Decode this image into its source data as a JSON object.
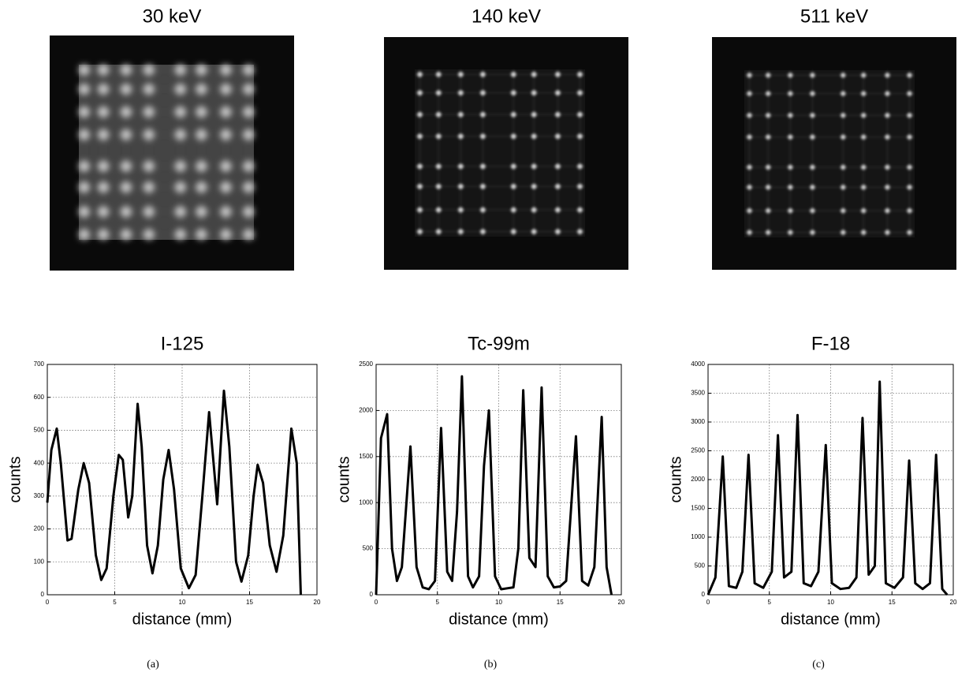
{
  "images": [
    {
      "title": "30 keV"
    },
    {
      "title": "140 keV"
    },
    {
      "title": "511 keV"
    }
  ],
  "panels": [
    "(a)",
    "(b)",
    "(c)"
  ],
  "chart_data": [
    {
      "type": "line",
      "title": "I-125",
      "x_label": "distance (mm)",
      "y_label": "counts",
      "color": "#000000",
      "grid": true,
      "xlim": [
        0,
        20
      ],
      "xticks": [
        0,
        5,
        10,
        15,
        20
      ],
      "ylim": [
        0,
        700
      ],
      "yticks": [
        0,
        100,
        200,
        300,
        400,
        500,
        600,
        700
      ],
      "x": [
        0,
        0.3,
        0.7,
        1.0,
        1.5,
        1.8,
        2.3,
        2.7,
        3.1,
        3.6,
        4.0,
        4.4,
        4.9,
        5.3,
        5.6,
        6.0,
        6.3,
        6.7,
        7.0,
        7.4,
        7.8,
        8.2,
        8.6,
        9.0,
        9.4,
        9.9,
        10.5,
        11.0,
        11.5,
        12.0,
        12.6,
        13.1,
        13.5,
        14.0,
        14.4,
        14.9,
        15.3,
        15.6,
        16.0,
        16.5,
        17.0,
        17.5,
        18.1,
        18.5,
        18.8
      ],
      "values": [
        280,
        440,
        505,
        400,
        165,
        170,
        320,
        400,
        340,
        120,
        45,
        80,
        300,
        425,
        410,
        235,
        300,
        580,
        450,
        150,
        65,
        150,
        350,
        440,
        320,
        80,
        20,
        60,
        300,
        555,
        275,
        620,
        450,
        100,
        40,
        120,
        300,
        395,
        340,
        150,
        70,
        180,
        505,
        400,
        0
      ]
    },
    {
      "type": "line",
      "title": "Tc-99m",
      "x_label": "distance (mm)",
      "y_label": "counts",
      "color": "#000000",
      "grid": true,
      "xlim": [
        0,
        20
      ],
      "xticks": [
        0,
        5,
        10,
        15,
        20
      ],
      "ylim": [
        0,
        2500
      ],
      "yticks": [
        0,
        500,
        1000,
        1500,
        2000,
        2500
      ],
      "x": [
        0,
        0.4,
        0.9,
        1.3,
        1.7,
        2.1,
        2.8,
        3.3,
        3.8,
        4.3,
        4.8,
        5.3,
        5.8,
        6.2,
        6.6,
        7.0,
        7.5,
        7.9,
        8.4,
        8.8,
        9.2,
        9.7,
        10.2,
        10.7,
        11.2,
        11.6,
        12.0,
        12.5,
        13.0,
        13.5,
        14.0,
        14.5,
        15.0,
        15.5,
        16.3,
        16.8,
        17.3,
        17.8,
        18.4,
        18.8,
        19.2
      ],
      "values": [
        0,
        1700,
        1960,
        500,
        150,
        300,
        1610,
        300,
        80,
        60,
        150,
        1810,
        250,
        150,
        900,
        2370,
        200,
        80,
        200,
        1400,
        2000,
        200,
        60,
        70,
        80,
        500,
        2220,
        400,
        300,
        2250,
        200,
        80,
        90,
        150,
        1720,
        150,
        100,
        300,
        1930,
        300,
        0
      ]
    },
    {
      "type": "line",
      "title": "F-18",
      "x_label": "distance (mm)",
      "y_label": "counts",
      "color": "#000000",
      "grid": true,
      "xlim": [
        0,
        20
      ],
      "xticks": [
        0,
        5,
        10,
        15,
        20
      ],
      "ylim": [
        0,
        4000
      ],
      "yticks": [
        0,
        500,
        1000,
        1500,
        2000,
        2500,
        3000,
        3500,
        4000
      ],
      "x": [
        0,
        0.6,
        1.2,
        1.7,
        2.3,
        2.8,
        3.3,
        3.8,
        4.5,
        5.2,
        5.7,
        6.2,
        6.8,
        7.3,
        7.8,
        8.4,
        9.0,
        9.6,
        10.1,
        10.8,
        11.5,
        12.1,
        12.6,
        13.1,
        13.6,
        14.0,
        14.5,
        15.2,
        15.9,
        16.4,
        16.9,
        17.5,
        18.1,
        18.6,
        19.1,
        19.5
      ],
      "values": [
        0,
        300,
        2400,
        150,
        120,
        400,
        2430,
        200,
        120,
        400,
        2770,
        300,
        400,
        3120,
        200,
        150,
        400,
        2600,
        200,
        100,
        120,
        300,
        3070,
        350,
        500,
        3700,
        200,
        120,
        300,
        2330,
        200,
        100,
        200,
        2430,
        100,
        0
      ]
    }
  ]
}
